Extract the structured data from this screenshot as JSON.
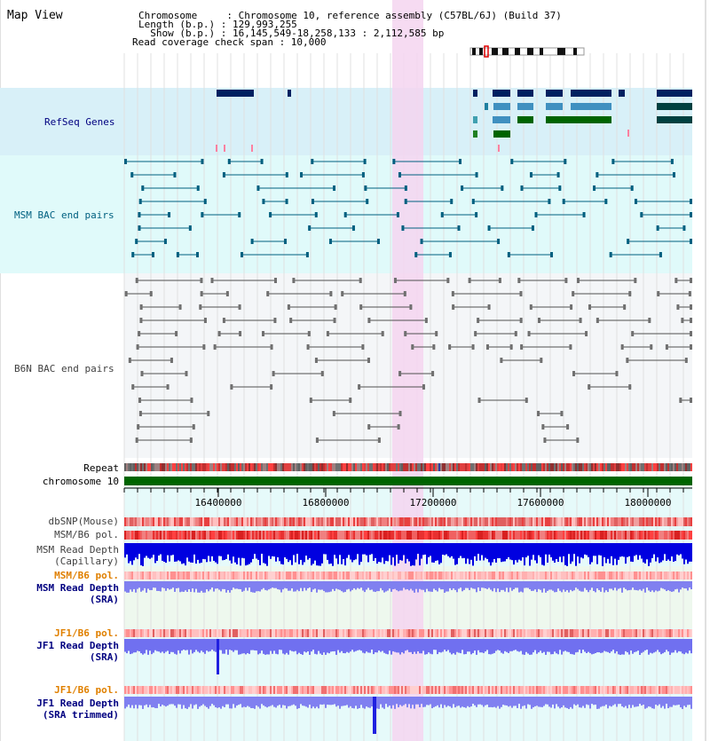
{
  "title": "Map View",
  "info": {
    "line1": "Chromosome     : Chromosome 10, reference assembly (C57BL/6J) (Build 37)",
    "line2": "Length (b.p.) : 129,993,255",
    "line3": "  Show (b.p.) : 16,145,549-18,258,133 : 2,112,585 bp",
    "line4": "Read coverage check span : 10,000"
  },
  "tracks": {
    "refseq": "RefSeq Genes",
    "msm_bac": "MSM BAC end pairs",
    "b6n_bac": "B6N BAC end pairs",
    "repeat": "Repeat",
    "chrom": "chromosome 10",
    "dbsnp": "dbSNP(Mouse)",
    "msm_pol": "MSM/B6 pol.",
    "msm_depth_cap_1": "MSM Read Depth",
    "msm_depth_cap_2": "(Capillary)",
    "msm_pol_sra": "MSM/B6 pol.",
    "msm_depth_sra_1": "MSM Read Depth",
    "msm_depth_sra_2": "(SRA)",
    "jf1_pol": "JF1/B6 pol.",
    "jf1_depth_1": "JF1 Read Depth",
    "jf1_depth_2": "(SRA)",
    "jf1_pol_2": "JF1/B6 pol.",
    "jf1_trim_1": "JF1 Read Depth",
    "jf1_trim_2": "(SRA trimmed)"
  },
  "axis": {
    "ticks": [
      "16400000",
      "16800000",
      "17200000",
      "17600000",
      "18000000"
    ]
  },
  "colors": {
    "label_blue": "#000080",
    "label_teal": "#006080",
    "label_gray": "#404040",
    "label_orange": "#e08000",
    "highlight": "#f5d5f0",
    "refseq_bg": "#d8f0f8",
    "msm_bg": "#e0fafa",
    "b6n_bg": "#f4f6f8",
    "chrom_green": "#006400"
  }
}
